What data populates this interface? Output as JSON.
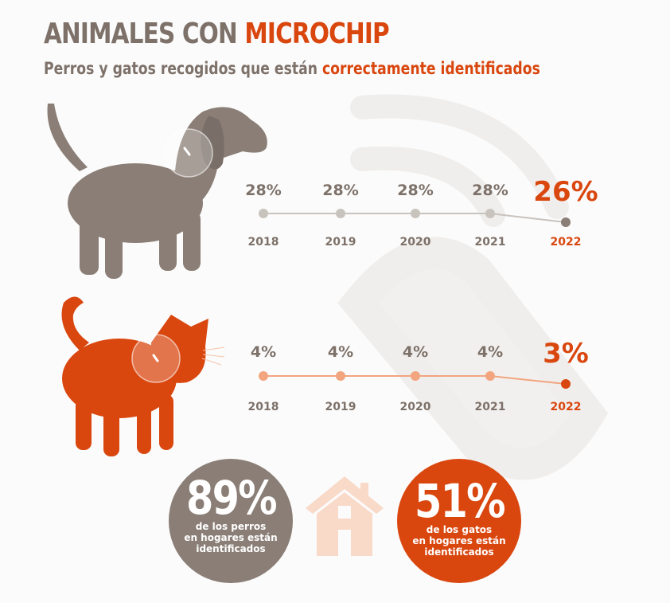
{
  "title": {
    "part1": "ANIMALES CON ",
    "part2": "MICROCHIP"
  },
  "subtitle": {
    "part1": "Perros y gatos recogidos que están ",
    "part2": "correctamente identificados"
  },
  "colors": {
    "dog": "#8a7e76",
    "cat": "#d9470f",
    "dog_line": "#c9c3bd",
    "cat_line": "#f2a57f",
    "house": "#f9d9c8"
  },
  "chart_data": [
    {
      "type": "line",
      "name": "perros",
      "x": [
        "2018",
        "2019",
        "2020",
        "2021",
        "2022"
      ],
      "values": [
        28,
        28,
        28,
        28,
        26
      ],
      "labels": [
        "28%",
        "28%",
        "28%",
        "28%",
        "26%"
      ]
    },
    {
      "type": "line",
      "name": "gatos",
      "x": [
        "2018",
        "2019",
        "2020",
        "2021",
        "2022"
      ],
      "values": [
        4,
        4,
        4,
        4,
        3
      ],
      "labels": [
        "4%",
        "4%",
        "4%",
        "4%",
        "3%"
      ]
    }
  ],
  "stats": {
    "dogs": {
      "value": "89%",
      "line1": "de los perros",
      "line2": "en hogares están",
      "line3": "identificados"
    },
    "cats": {
      "value": "51%",
      "line1": "de los gatos",
      "line2": "en hogares están",
      "line3": "identificados"
    }
  }
}
